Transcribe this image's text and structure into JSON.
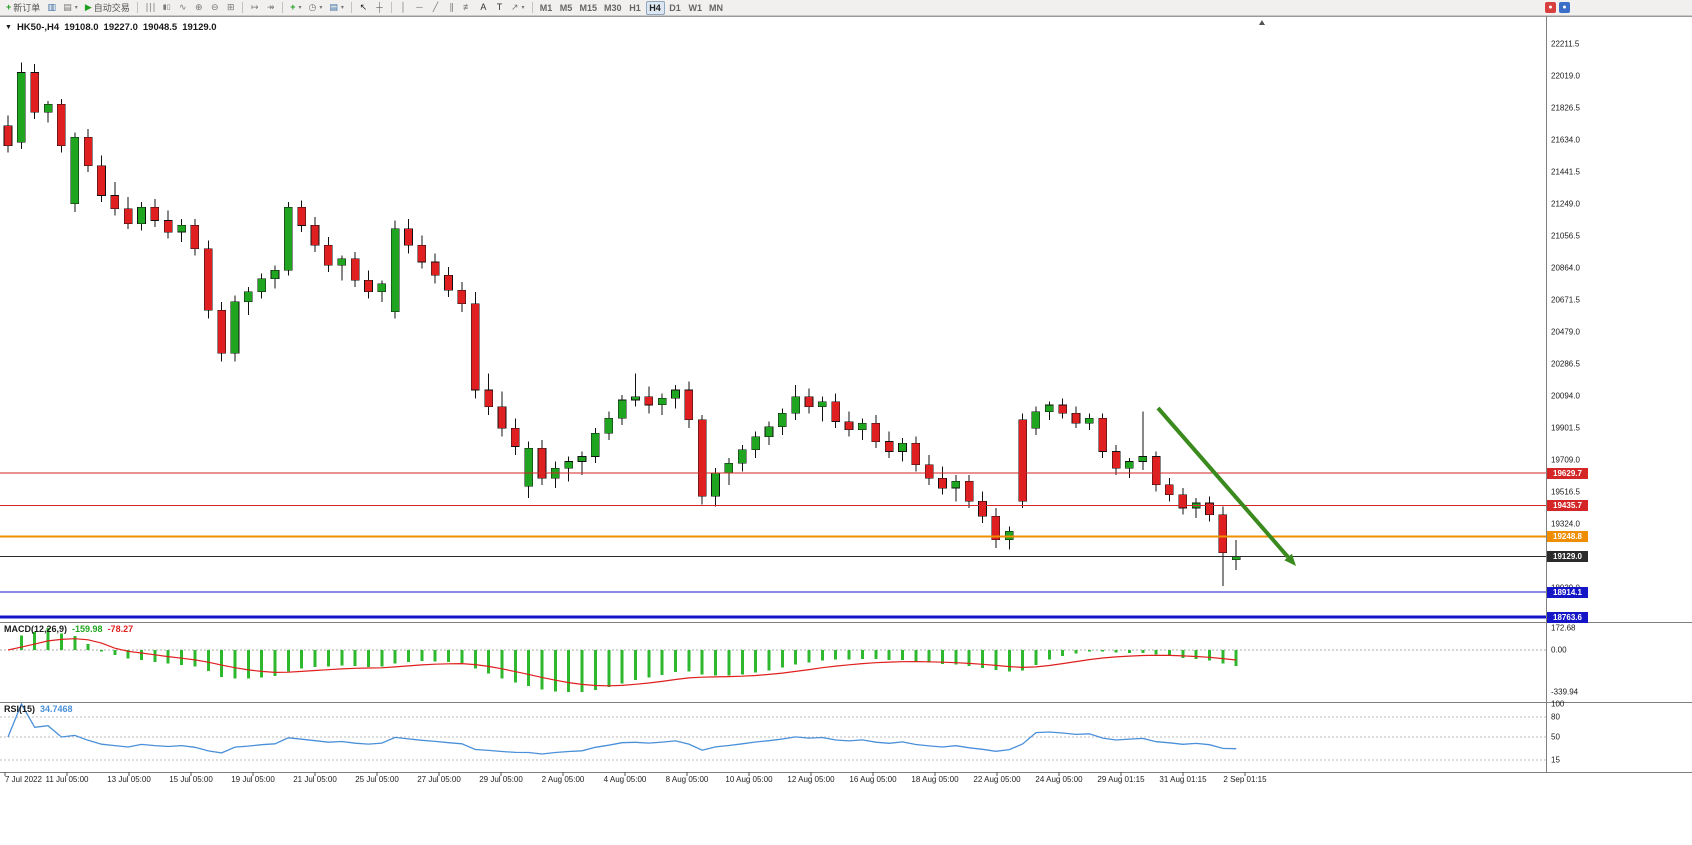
{
  "toolbar": {
    "new_order_label": "新订单",
    "autotrading_label": "自动交易",
    "timeframes": [
      "M1",
      "M5",
      "M15",
      "M30",
      "H1",
      "H4",
      "D1",
      "W1",
      "MN"
    ],
    "active_timeframe": "H4",
    "icons": {
      "new_order": "+",
      "charts": "▥",
      "profiles": "▤",
      "autotrading": "▶",
      "bars": "∣∣∣",
      "candles": "▮▯",
      "line": "∿",
      "zoom_in": "⊕",
      "zoom_out": "⊖",
      "tile": "⊞",
      "autoscroll": "↦",
      "shift": "↠",
      "indicators": "+",
      "periods": "◷",
      "templates": "▤",
      "cursor": "↖",
      "crosshair": "┼",
      "vline": "│",
      "hline": "─",
      "trendline": "╱",
      "channel": "∥",
      "fibo": "≢",
      "text": "A",
      "label": "T",
      "arrows": "↗",
      "caret": "▾",
      "collapse": "▼"
    }
  },
  "chart": {
    "symbol_label": "HK50-,H4",
    "ohlc": {
      "open": "19108.0",
      "high": "19227.0",
      "low": "19048.5",
      "close": "19129.0"
    }
  },
  "chart_data": {
    "type": "candlestick",
    "symbol": "HK50-",
    "timeframe": "H4",
    "title": "HK50-,H4 19108.0 19227.0 19048.5 19129.0",
    "colors": {
      "up": "#1fa51f",
      "down": "#e02020",
      "wick": "#111111",
      "macd_hist": "#2eb82e",
      "macd_signal": "#e01f1f",
      "rsi_line": "#4a90d9",
      "arrow": "#3a8a1e"
    },
    "price_axis_labels": [
      "22211.5",
      "22019.0",
      "21826.5",
      "21634.0",
      "21441.5",
      "21249.0",
      "21056.5",
      "20864.0",
      "20671.5",
      "20479.0",
      "20286.5",
      "20094.0",
      "19901.5",
      "19709.0",
      "19516.5",
      "19324.0",
      "19131.5",
      "18939.0"
    ],
    "time_axis_labels": [
      "7 Jul 2022",
      "11 Jul 05:00",
      "13 Jul 05:00",
      "15 Jul 05:00",
      "19 Jul 05:00",
      "21 Jul 05:00",
      "25 Jul 05:00",
      "27 Jul 05:00",
      "29 Jul 05:00",
      "2 Aug 05:00",
      "4 Aug 05:00",
      "8 Aug 05:00",
      "10 Aug 05:00",
      "12 Aug 05:00",
      "16 Aug 05:00",
      "18 Aug 05:00",
      "22 Aug 05:00",
      "24 Aug 05:00",
      "29 Aug 01:15",
      "31 Aug 01:15",
      "2 Sep 01:15"
    ],
    "price_lines": [
      {
        "price": 19629.7,
        "label": "19629.7",
        "color": "#d42626",
        "width": 1
      },
      {
        "price": 19435.7,
        "label": "19435.7",
        "color": "#d42626",
        "width": 1
      },
      {
        "price": 19248.8,
        "label": "19248.8",
        "color": "#ef8e00",
        "width": 2
      },
      {
        "price": 19129.0,
        "label": "19129.0",
        "color": "#2b2b2b",
        "width": 1
      },
      {
        "price": 18914.1,
        "label": "18914.1",
        "color": "#1515c8",
        "width": 1
      },
      {
        "price": 18763.6,
        "label": "18763.6",
        "color": "#1515c8",
        "width": 3
      }
    ],
    "candles": [
      [
        21720,
        21780,
        21560,
        21600
      ],
      [
        21620,
        22100,
        21580,
        22040
      ],
      [
        22040,
        22090,
        21760,
        21800
      ],
      [
        21800,
        21870,
        21740,
        21850
      ],
      [
        21850,
        21880,
        21560,
        21600
      ],
      [
        21250,
        21680,
        21200,
        21650
      ],
      [
        21650,
        21700,
        21440,
        21480
      ],
      [
        21480,
        21540,
        21260,
        21300
      ],
      [
        21300,
        21380,
        21180,
        21220
      ],
      [
        21220,
        21290,
        21100,
        21130
      ],
      [
        21130,
        21260,
        21090,
        21230
      ],
      [
        21230,
        21280,
        21110,
        21150
      ],
      [
        21150,
        21210,
        21040,
        21080
      ],
      [
        21080,
        21160,
        21020,
        21120
      ],
      [
        21120,
        21160,
        20940,
        20980
      ],
      [
        20980,
        21030,
        20560,
        20610
      ],
      [
        20610,
        20660,
        20300,
        20350
      ],
      [
        20350,
        20700,
        20300,
        20660
      ],
      [
        20660,
        20750,
        20580,
        20720
      ],
      [
        20720,
        20830,
        20680,
        20800
      ],
      [
        20800,
        20880,
        20740,
        20850
      ],
      [
        20850,
        21260,
        20820,
        21230
      ],
      [
        21230,
        21270,
        21080,
        21120
      ],
      [
        21120,
        21170,
        20960,
        21000
      ],
      [
        21000,
        21050,
        20840,
        20880
      ],
      [
        20880,
        20940,
        20790,
        20920
      ],
      [
        20920,
        20960,
        20750,
        20790
      ],
      [
        20790,
        20850,
        20680,
        20720
      ],
      [
        20720,
        20790,
        20660,
        20770
      ],
      [
        20600,
        21150,
        20560,
        21100
      ],
      [
        21100,
        21160,
        20950,
        21000
      ],
      [
        21000,
        21060,
        20860,
        20900
      ],
      [
        20900,
        20950,
        20770,
        20820
      ],
      [
        20820,
        20870,
        20690,
        20730
      ],
      [
        20730,
        20780,
        20600,
        20650
      ],
      [
        20650,
        20720,
        20080,
        20130
      ],
      [
        20130,
        20230,
        19980,
        20030
      ],
      [
        20030,
        20120,
        19850,
        19900
      ],
      [
        19900,
        19960,
        19740,
        19790
      ],
      [
        19550,
        19820,
        19480,
        19780
      ],
      [
        19780,
        19830,
        19560,
        19600
      ],
      [
        19600,
        19700,
        19540,
        19660
      ],
      [
        19660,
        19730,
        19580,
        19700
      ],
      [
        19700,
        19760,
        19620,
        19730
      ],
      [
        19730,
        19900,
        19690,
        19870
      ],
      [
        19870,
        20000,
        19830,
        19960
      ],
      [
        19960,
        20100,
        19920,
        20070
      ],
      [
        20070,
        20230,
        20030,
        20090
      ],
      [
        20090,
        20150,
        19990,
        20040
      ],
      [
        20040,
        20110,
        19980,
        20080
      ],
      [
        20080,
        20160,
        20020,
        20130
      ],
      [
        20130,
        20180,
        19900,
        19950
      ],
      [
        19950,
        19980,
        19440,
        19490
      ],
      [
        19490,
        19660,
        19430,
        19630
      ],
      [
        19630,
        19720,
        19560,
        19690
      ],
      [
        19690,
        19800,
        19640,
        19770
      ],
      [
        19770,
        19880,
        19720,
        19850
      ],
      [
        19850,
        19940,
        19800,
        19910
      ],
      [
        19910,
        20020,
        19860,
        19990
      ],
      [
        19990,
        20160,
        19950,
        20090
      ],
      [
        20090,
        20140,
        19990,
        20030
      ],
      [
        20030,
        20090,
        19940,
        20060
      ],
      [
        20060,
        20110,
        19900,
        19940
      ],
      [
        19940,
        20000,
        19850,
        19890
      ],
      [
        19890,
        19960,
        19830,
        19930
      ],
      [
        19930,
        19980,
        19780,
        19820
      ],
      [
        19820,
        19880,
        19720,
        19760
      ],
      [
        19760,
        19840,
        19700,
        19810
      ],
      [
        19810,
        19850,
        19640,
        19680
      ],
      [
        19680,
        19740,
        19560,
        19600
      ],
      [
        19600,
        19670,
        19500,
        19540
      ],
      [
        19540,
        19620,
        19460,
        19580
      ],
      [
        19580,
        19620,
        19420,
        19460
      ],
      [
        19460,
        19520,
        19330,
        19370
      ],
      [
        19370,
        19420,
        19180,
        19230
      ],
      [
        19230,
        19310,
        19170,
        19280
      ],
      [
        19950,
        19990,
        19420,
        19460
      ],
      [
        19900,
        20030,
        19860,
        20000
      ],
      [
        20000,
        20060,
        19950,
        20040
      ],
      [
        20040,
        20080,
        19960,
        19990
      ],
      [
        19990,
        20030,
        19900,
        19930
      ],
      [
        19930,
        19990,
        19890,
        19960
      ],
      [
        19960,
        19990,
        19720,
        19760
      ],
      [
        19760,
        19800,
        19620,
        19660
      ],
      [
        19660,
        19720,
        19600,
        19700
      ],
      [
        19700,
        20000,
        19650,
        19730
      ],
      [
        19730,
        19760,
        19520,
        19560
      ],
      [
        19560,
        19600,
        19460,
        19500
      ],
      [
        19500,
        19540,
        19380,
        19420
      ],
      [
        19420,
        19480,
        19360,
        19450
      ],
      [
        19450,
        19490,
        19340,
        19380
      ],
      [
        19380,
        19430,
        18950,
        19150
      ],
      [
        19108,
        19227,
        19048.5,
        19129
      ]
    ],
    "indicators": [
      {
        "name": "MACD(12,26,9)",
        "main_value": "-159.98",
        "signal_value": "-78.27",
        "scale_labels": [
          "172.68",
          "0.00",
          "-339.94"
        ]
      },
      {
        "name": "RSI(15)",
        "value": "34.7468",
        "levels": [
          80,
          50,
          15
        ],
        "scale_labels": [
          "100",
          "80",
          "50",
          "15"
        ]
      }
    ]
  }
}
